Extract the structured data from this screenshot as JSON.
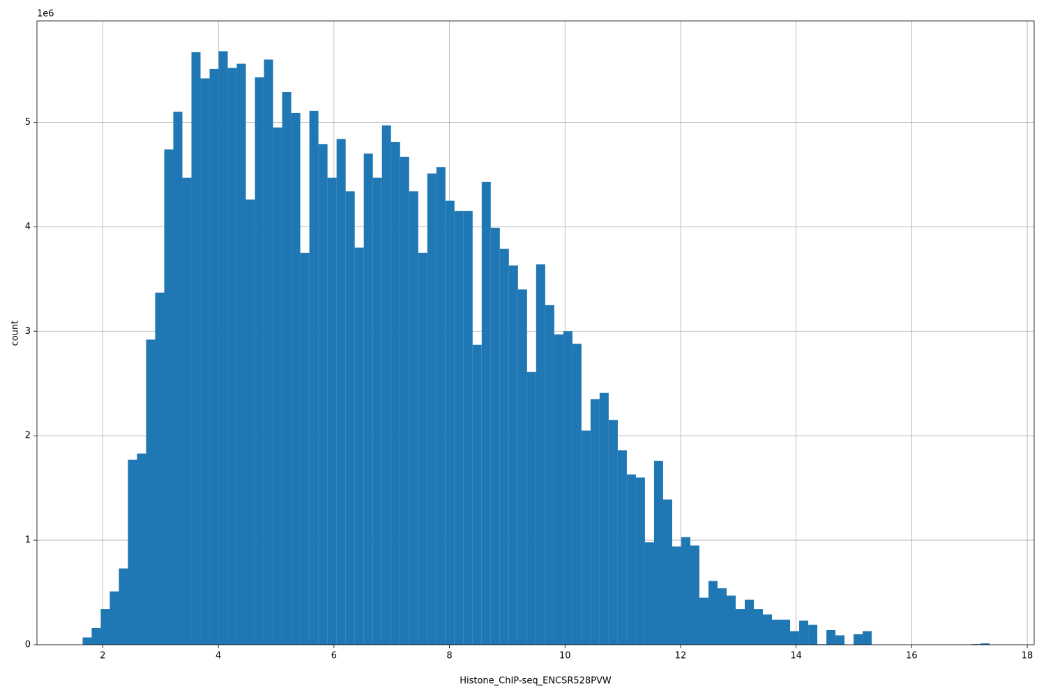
{
  "chart_data": {
    "type": "histogram",
    "xlabel": "Histone_ChIP-seq_ENCSR528PVW",
    "ylabel": "count",
    "y_offset_label": "1e6",
    "color": "#1f77b4",
    "grid": true,
    "bins": [
      1.65,
      1.807,
      1.964,
      2.121,
      2.278,
      2.435,
      2.592,
      2.749,
      2.906,
      3.063,
      3.22,
      3.377,
      3.534,
      3.691,
      3.848,
      4.005,
      4.162,
      4.319,
      4.476,
      4.633,
      4.79,
      4.947,
      5.104,
      5.261,
      5.418,
      5.575,
      5.732,
      5.889,
      6.046,
      6.203,
      6.36,
      6.517,
      6.674,
      6.831,
      6.988,
      7.145,
      7.302,
      7.459,
      7.616,
      7.773,
      7.93,
      8.087,
      8.244,
      8.401,
      8.558,
      8.715,
      8.872,
      9.029,
      9.186,
      9.343,
      9.5,
      9.657,
      9.814,
      9.971,
      10.128,
      10.285,
      10.442,
      10.599,
      10.756,
      10.913,
      11.07,
      11.227,
      11.384,
      11.541,
      11.698,
      11.855,
      12.012,
      12.169,
      12.326,
      12.483,
      12.64,
      12.797,
      12.954,
      13.111,
      13.268,
      13.425,
      13.582,
      13.739,
      13.896,
      14.053,
      14.21,
      14.367,
      14.524,
      14.681,
      14.838,
      14.995,
      15.152,
      15.309,
      15.466,
      15.623,
      15.78,
      15.937,
      16.094,
      16.251,
      16.408,
      16.565,
      16.722,
      16.879,
      17.036,
      17.193,
      17.35
    ],
    "values": [
      70000,
      160000,
      340000,
      510000,
      730000,
      1770000,
      1830000,
      2920000,
      3370000,
      4740000,
      5100000,
      4470000,
      5670000,
      5420000,
      5510000,
      5680000,
      5520000,
      5560000,
      4260000,
      5430000,
      5600000,
      4950000,
      5290000,
      5090000,
      3750000,
      5110000,
      4790000,
      4470000,
      4840000,
      4340000,
      3800000,
      4700000,
      4470000,
      4970000,
      4810000,
      4670000,
      4340000,
      3750000,
      4510000,
      4570000,
      4250000,
      4150000,
      4150000,
      2870000,
      4430000,
      3990000,
      3790000,
      3630000,
      3400000,
      2610000,
      3640000,
      3250000,
      2970000,
      3000000,
      2880000,
      2050000,
      2350000,
      2410000,
      2150000,
      1860000,
      1630000,
      1600000,
      980000,
      1760000,
      1390000,
      940000,
      1030000,
      950000,
      450000,
      610000,
      540000,
      470000,
      340000,
      430000,
      340000,
      290000,
      240000,
      240000,
      130000,
      230000,
      190000,
      5000,
      140000,
      90000,
      0,
      100000,
      130000,
      0,
      0,
      0,
      0,
      0,
      0,
      0,
      0,
      0,
      0,
      0,
      6000,
      13000
    ],
    "xlim": [
      0.86,
      18.12
    ],
    "ylim": [
      0,
      5970000
    ],
    "xticks": [
      2,
      4,
      6,
      8,
      10,
      12,
      14,
      16,
      18
    ],
    "yticks": [
      0,
      {
        "value": 1000000,
        "label": "1"
      },
      {
        "value": 2000000,
        "label": "2"
      },
      {
        "value": 3000000,
        "label": "3"
      },
      {
        "value": 4000000,
        "label": "4"
      },
      {
        "value": 5000000,
        "label": "5"
      }
    ]
  }
}
